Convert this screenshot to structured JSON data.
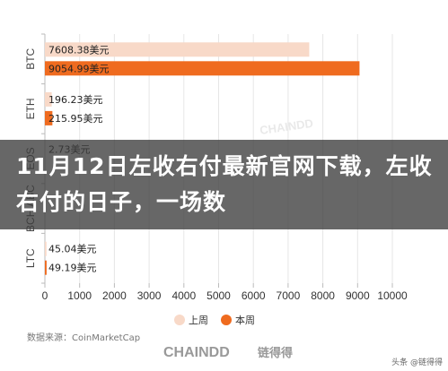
{
  "chart_data": {
    "type": "bar",
    "orientation": "horizontal",
    "categories": [
      "BTC",
      "ETH",
      "EOS",
      "BCH ABC",
      "LTC"
    ],
    "series": [
      {
        "name": "上周",
        "color": "#f8d9c8",
        "values": [
          7608.38,
          196.23,
          2.73,
          0,
          45.04
        ],
        "labels": [
          "7608.38美元",
          "196.23美元",
          "2.73美元",
          "",
          "45.04美元"
        ]
      },
      {
        "name": "本周",
        "color": "#ef6b1f",
        "values": [
          9054.99,
          215.95,
          0,
          0,
          49.19
        ],
        "labels": [
          "9054.99美元",
          "215.95美元",
          "",
          "",
          "49.19美元"
        ]
      }
    ],
    "xticks": [
      "0",
      "1000",
      "2000",
      "3000",
      "4000",
      "5000",
      "6000",
      "7000",
      "8000",
      "9000",
      "10000"
    ],
    "xlim": [
      0,
      10000
    ],
    "legend": "bottom-center",
    "grid": true
  },
  "overlay": {
    "title": "11月12日左收右付最新官网下载，左收右付的日子，一场数"
  },
  "source": "数据来源：CoinMarketCap",
  "watermark": "CHAINDD",
  "brand": {
    "logo_text": "CHAINDD",
    "logo_cn": "链得得"
  },
  "corner_text": "头条 @链得得",
  "colors": {
    "last_week": "#f8d9c8",
    "this_week": "#ef6b1f",
    "grid": "#e6e6e6",
    "axis": "#bbbbbb"
  }
}
